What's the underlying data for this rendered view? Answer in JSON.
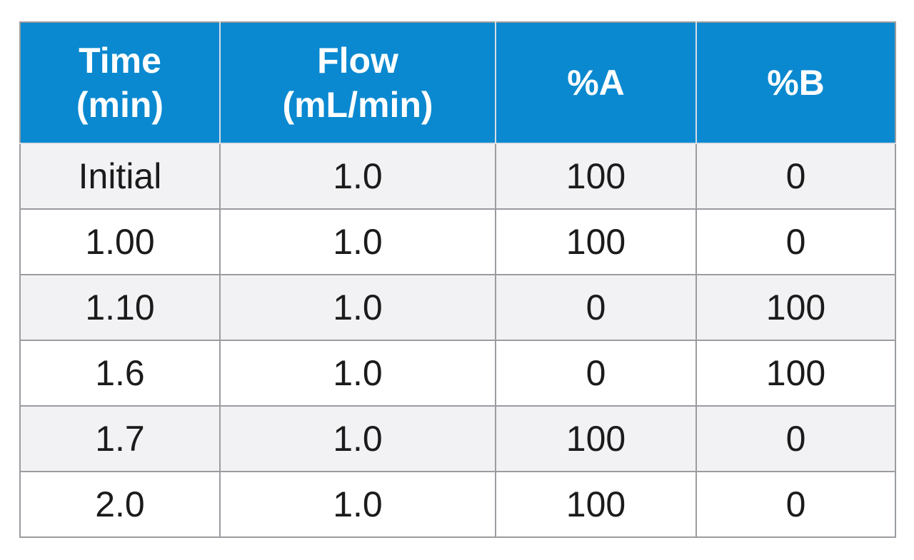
{
  "table": {
    "headers": [
      {
        "lines": [
          "Time",
          "(min)"
        ]
      },
      {
        "lines": [
          "Flow",
          "(mL/min)"
        ]
      },
      {
        "lines": [
          "%A"
        ]
      },
      {
        "lines": [
          "%B"
        ]
      }
    ],
    "rows": [
      [
        "Initial",
        "1.0",
        "100",
        "0"
      ],
      [
        "1.00",
        "1.0",
        "100",
        "0"
      ],
      [
        "1.10",
        "1.0",
        "0",
        "100"
      ],
      [
        "1.6",
        "1.0",
        "0",
        "100"
      ],
      [
        "1.7",
        "1.0",
        "100",
        "0"
      ],
      [
        "2.0",
        "1.0",
        "100",
        "0"
      ]
    ]
  },
  "colors": {
    "header_background": "#0a89d0",
    "header_text": "#ffffff",
    "stripe_row": "#f2f2f4",
    "plain_row": "#ffffff",
    "grid_line": "#9a9ca0"
  }
}
